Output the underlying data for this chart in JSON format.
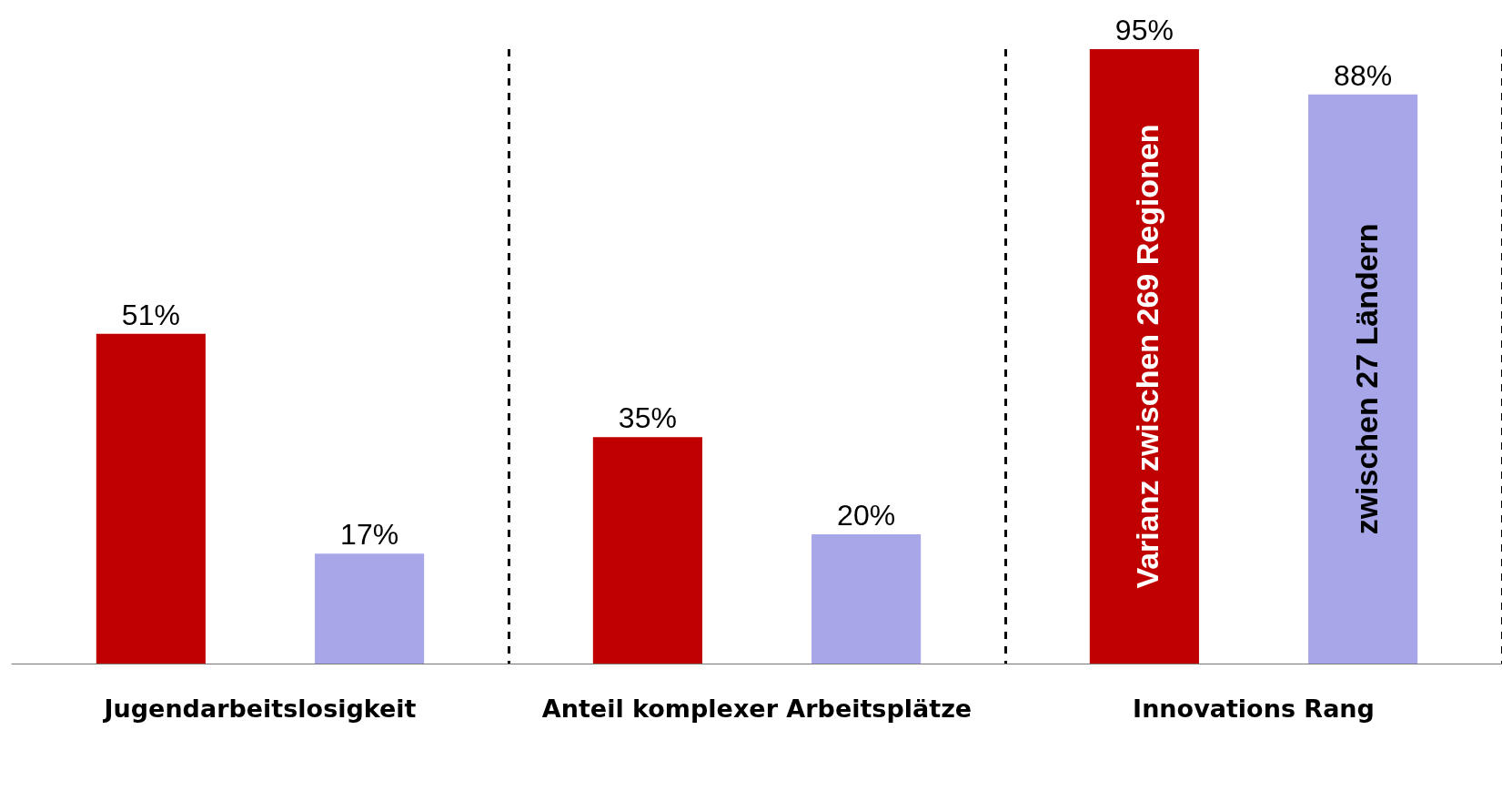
{
  "chart_data": {
    "type": "bar",
    "categories": [
      "Jugendarbeitslosigkeit",
      "Anteil komplexer Arbeitsplätze",
      "Innovations Rang"
    ],
    "series": [
      {
        "name": "Varianz zwischen 269 Regionen",
        "color": "#c00000",
        "values": [
          51,
          35,
          95
        ],
        "value_labels": [
          "51%",
          "35%",
          "95%"
        ]
      },
      {
        "name": "zwischen 27 Ländern",
        "color": "#a6a6e8",
        "values": [
          17,
          20,
          88
        ],
        "value_labels": [
          "17%",
          "20%",
          "88%"
        ]
      }
    ],
    "grid": "x",
    "line_style": "dashed",
    "legend": false
  }
}
